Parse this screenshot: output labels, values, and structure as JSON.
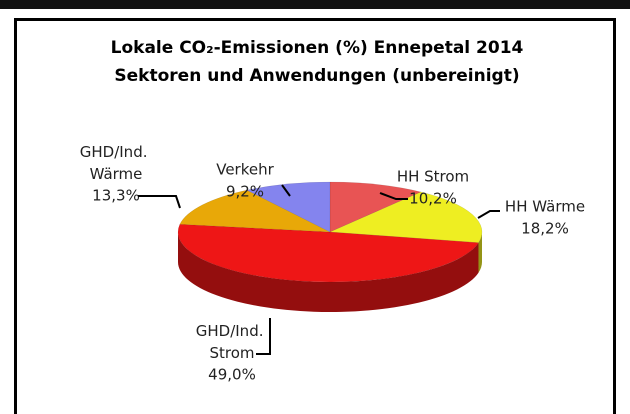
{
  "chart_data": {
    "type": "pie",
    "title": "Lokale CO₂-Emissionen (%) Ennepetal 2014",
    "subtitle": "Sektoren und Anwendungen (unbereinigt)",
    "categories": [
      "HH Strom",
      "HH Wärme",
      "GHD/Ind. Strom",
      "GHD/Ind. Wärme",
      "Verkehr"
    ],
    "values": [
      10.2,
      18.2,
      49.0,
      13.3,
      9.2
    ],
    "value_labels": [
      "10,2%",
      "18,2%",
      "49,0%",
      "13,3%",
      "9,2%"
    ],
    "colors": [
      "#e85454",
      "#eeee22",
      "#ee1616",
      "#e8a808",
      "#8484ee"
    ]
  }
}
